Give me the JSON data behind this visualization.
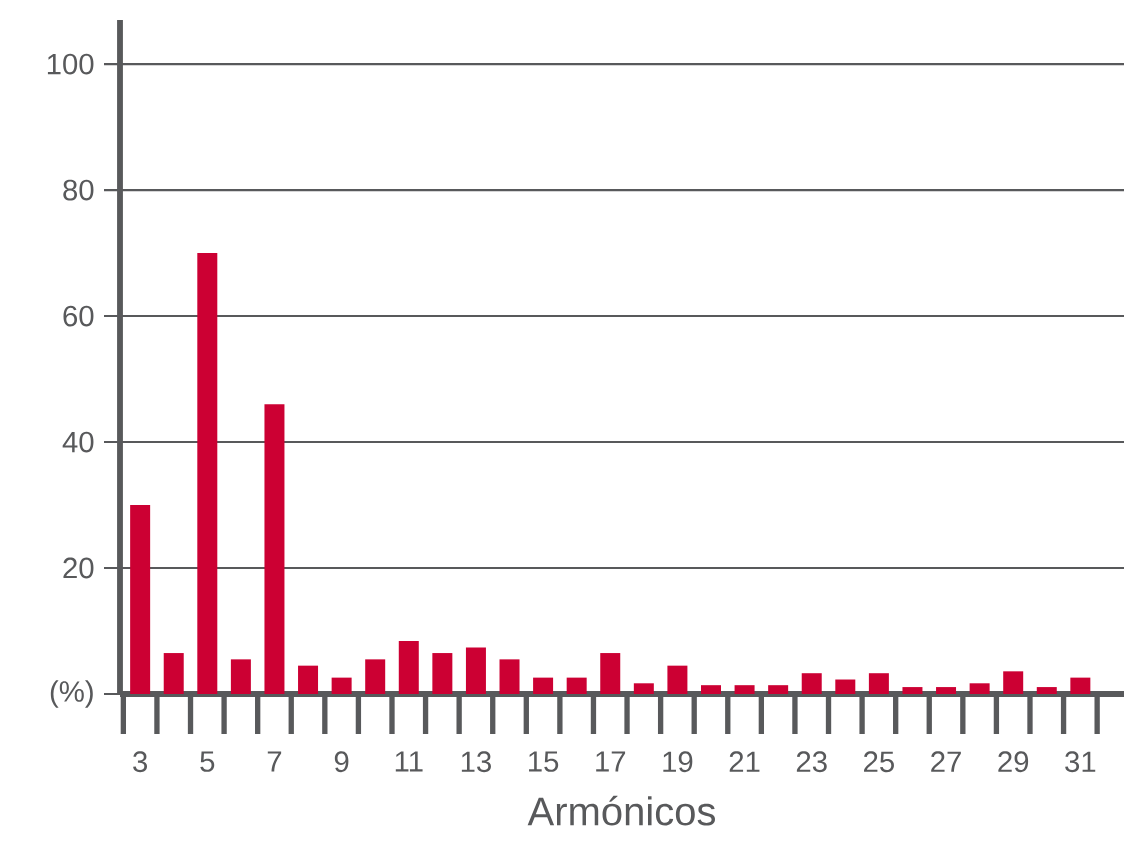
{
  "chart_data": {
    "type": "bar",
    "xlabel": "Armónicos",
    "categories": [
      "3",
      null,
      "5",
      null,
      "7",
      null,
      "9",
      null,
      "11",
      null,
      "13",
      null,
      "15",
      null,
      "17",
      null,
      "19",
      null,
      "21",
      null,
      "23",
      null,
      "25",
      null,
      "27",
      null,
      "29",
      null,
      "31"
    ],
    "values": [
      30,
      6.5,
      70,
      5.5,
      46,
      4.5,
      2.6,
      5.5,
      8.4,
      6.5,
      7.4,
      5.5,
      2.6,
      2.6,
      6.5,
      1.7,
      4.5,
      1.4,
      1.4,
      1.4,
      3.3,
      2.3,
      3.3,
      1.1,
      1.1,
      1.7,
      3.6,
      1.1,
      2.6
    ],
    "color": "#cc0033",
    "ylim": [
      0,
      107
    ],
    "yticks": [
      {
        "value": 0,
        "label": "(%)"
      },
      20,
      40,
      60,
      80,
      100
    ],
    "grid": "y"
  }
}
